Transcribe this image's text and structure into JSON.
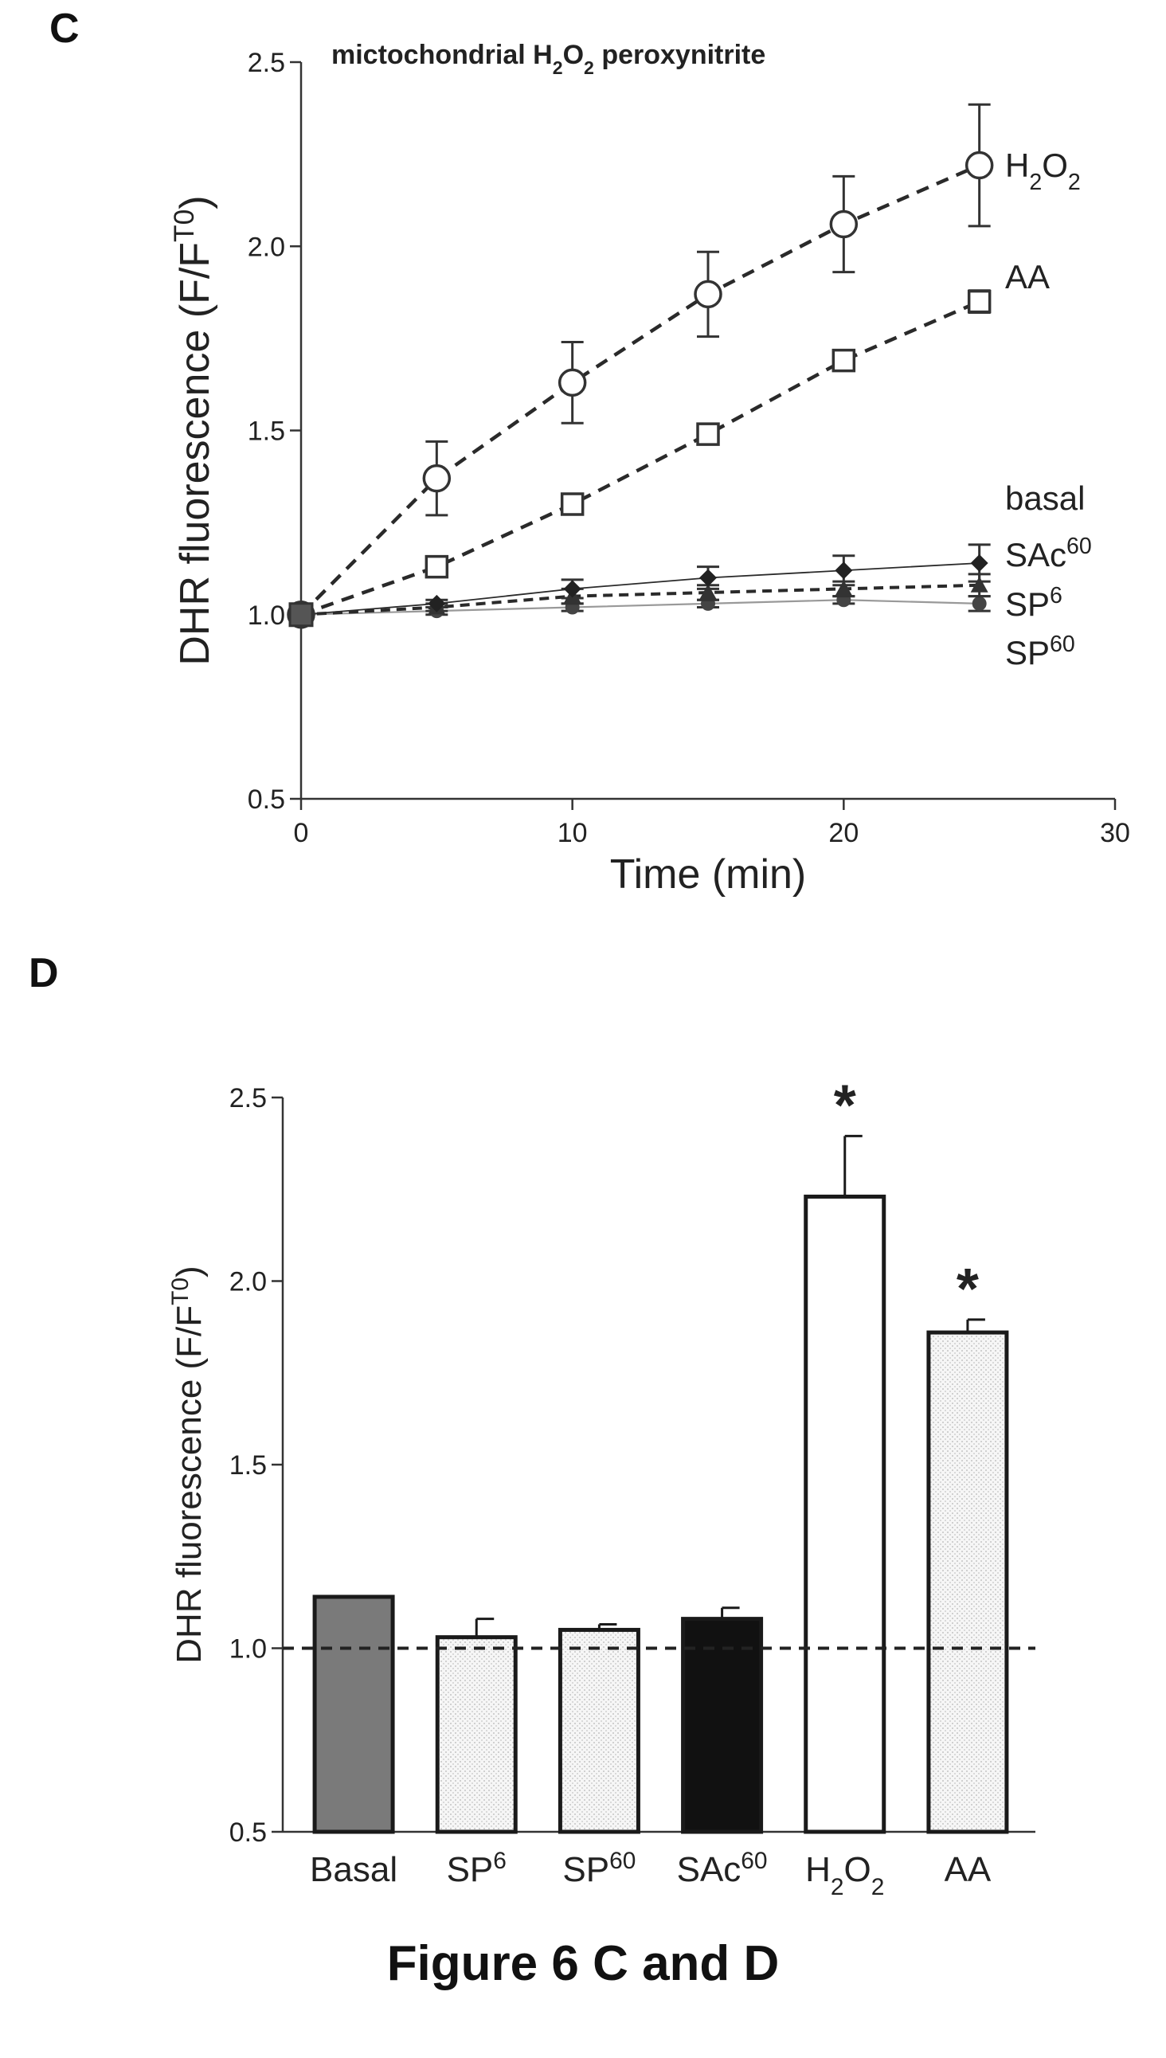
{
  "panel_c_letter": "C",
  "panel_d_letter": "D",
  "caption": "Figure 6 C and D",
  "chart_data": [
    {
      "type": "line",
      "panel": "C",
      "title": "mictochondrial H2O2 peroxynitrite",
      "xlabel": "Time (min)",
      "ylabel": "DHR fluorescence (F/FT0)",
      "xlim": [
        0,
        30
      ],
      "ylim": [
        0.5,
        2.5
      ],
      "xticks": [
        0,
        10,
        20,
        30
      ],
      "yticks": [
        "0.5",
        "1.0",
        "1.5",
        "2.0",
        "2.5"
      ],
      "grid": false,
      "legend": "right, at line ends",
      "series": [
        {
          "name": "H2O2",
          "marker": "open-circle",
          "line": "dashed",
          "x": [
            0,
            5,
            10,
            15,
            20,
            25
          ],
          "y": [
            1.0,
            1.37,
            1.63,
            1.87,
            2.06,
            2.22
          ],
          "err": [
            0,
            0.1,
            0.11,
            0.115,
            0.13,
            0.165
          ]
        },
        {
          "name": "AA",
          "marker": "open-square",
          "line": "dashed",
          "x": [
            0,
            5,
            10,
            15,
            20,
            25
          ],
          "y": [
            1.0,
            1.13,
            1.3,
            1.49,
            1.69,
            1.85
          ],
          "err": [
            0,
            0.01,
            0.01,
            0.01,
            0.01,
            0.03
          ]
        },
        {
          "name": "basal",
          "marker": "none",
          "line": "none",
          "x": [],
          "y": []
        },
        {
          "name": "SAc60",
          "marker": "filled-diamond",
          "line": "solid",
          "x": [
            0,
            5,
            10,
            15,
            20,
            25
          ],
          "y": [
            1.0,
            1.03,
            1.07,
            1.1,
            1.12,
            1.14
          ],
          "err": [
            0,
            0.01,
            0.025,
            0.03,
            0.04,
            0.05
          ]
        },
        {
          "name": "SP6",
          "marker": "filled-triangle",
          "line": "dashed",
          "x": [
            0,
            5,
            10,
            15,
            20,
            25
          ],
          "y": [
            1.0,
            1.02,
            1.05,
            1.06,
            1.07,
            1.08
          ],
          "err": [
            0,
            0.01,
            0.02,
            0.02,
            0.02,
            0.03
          ]
        },
        {
          "name": "SP60",
          "marker": "filled-circle",
          "line": "solid-gray",
          "x": [
            0,
            5,
            10,
            15,
            20,
            25
          ],
          "y": [
            1.0,
            1.01,
            1.02,
            1.03,
            1.04,
            1.03
          ],
          "err": [
            0,
            0.01,
            0.01,
            0.01,
            0.01,
            0.02
          ]
        }
      ]
    },
    {
      "type": "bar",
      "panel": "D",
      "ylabel": "DHR fluorescence (F/FT0)",
      "ylim": [
        0.5,
        2.5
      ],
      "yticks": [
        "0.5",
        "1.0",
        "1.5",
        "2.0",
        "2.5"
      ],
      "reference_line": 1.0,
      "categories": [
        "Basal",
        "SP6",
        "SP60",
        "SAc60",
        "H2O2",
        "AA"
      ],
      "values": [
        1.14,
        1.03,
        1.05,
        1.08,
        2.23,
        1.86
      ],
      "errors": [
        0,
        0.05,
        0.015,
        0.03,
        0.165,
        0.035
      ],
      "significance": [
        "",
        "",
        "",
        "",
        "*",
        "*"
      ],
      "fills": [
        "#7a7a7a",
        "#e4e4e4",
        "#f1f1f1",
        "#111111",
        "#ffffff",
        "#f3f3f3"
      ]
    }
  ]
}
